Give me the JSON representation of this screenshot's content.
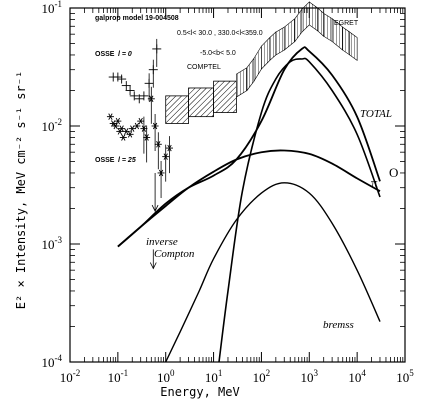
{
  "chart_data": {
    "type": "line",
    "title": "",
    "xlabel": "Energy, MeV",
    "ylabel": "E² × Intensity, MeV cm⁻² s⁻¹ sr⁻¹",
    "xscale": "log",
    "yscale": "log",
    "xlim": [
      0.01,
      100000
    ],
    "ylim": [
      0.0001,
      0.1
    ],
    "x_ticks": [
      {
        "value": 0.01,
        "base": "10",
        "exp": "-2"
      },
      {
        "value": 0.1,
        "base": "10",
        "exp": "-1"
      },
      {
        "value": 1,
        "base": "10",
        "exp": "0"
      },
      {
        "value": 10,
        "base": "10",
        "exp": "1"
      },
      {
        "value": 100,
        "base": "10",
        "exp": "2"
      },
      {
        "value": 1000,
        "base": "10",
        "exp": "3"
      },
      {
        "value": 10000,
        "base": "10",
        "exp": "4"
      },
      {
        "value": 100000,
        "base": "10",
        "exp": "5"
      }
    ],
    "y_ticks": [
      {
        "value": 0.0001,
        "base": "10",
        "exp": "-4"
      },
      {
        "value": 0.001,
        "base": "10",
        "exp": "-3"
      },
      {
        "value": 0.01,
        "base": "10",
        "exp": "-2"
      },
      {
        "value": 0.1,
        "base": "10",
        "exp": "-1"
      }
    ],
    "annotations": {
      "model": "galprop model 19-004508",
      "region": "0.5<l< 30.0 , 330.0<l<359.0",
      "latitude": "-5.0<b< 5.0",
      "comptel": "COMPTEL",
      "egret": "EGRET",
      "osse1_prefix": "OSSE",
      "osse1_eq": "l = 0",
      "osse2_prefix": "OSSE",
      "osse2_eq": "l = 25",
      "total": "TOTAL",
      "inverse": "inverse",
      "compton": "Compton",
      "bremss": "bremss",
      "pi0_pi": "π",
      "pi0_o": "O"
    },
    "series": [
      {
        "id": "total",
        "x": [
          0.1,
          0.3,
          1,
          3,
          10,
          30,
          100,
          300,
          700,
          1000,
          3000,
          10000,
          30000
        ],
        "y": [
          0.00095,
          0.0014,
          0.0022,
          0.003,
          0.0038,
          0.0052,
          0.011,
          0.03,
          0.045,
          0.043,
          0.027,
          0.012,
          0.0034
        ]
      },
      {
        "id": "pi0",
        "x": [
          13,
          20,
          40,
          100,
          200,
          400,
          700,
          1000,
          3000,
          10000,
          30000
        ],
        "y": [
          0.0001,
          0.0004,
          0.0028,
          0.013,
          0.025,
          0.035,
          0.037,
          0.035,
          0.02,
          0.0085,
          0.0025
        ]
      },
      {
        "id": "inverse_compton",
        "x": [
          0.1,
          0.3,
          1,
          3,
          10,
          30,
          100,
          300,
          1000,
          3000,
          10000,
          30000
        ],
        "y": [
          0.00095,
          0.0014,
          0.0021,
          0.003,
          0.0041,
          0.0052,
          0.006,
          0.0062,
          0.0058,
          0.0048,
          0.0036,
          0.0028
        ]
      },
      {
        "id": "bremss",
        "x": [
          1,
          2,
          5,
          10,
          30,
          100,
          300,
          1000,
          3000,
          10000,
          30000
        ],
        "y": [
          0.0001,
          0.00018,
          0.0004,
          0.00075,
          0.0016,
          0.0027,
          0.0033,
          0.0027,
          0.0015,
          0.0006,
          0.00022
        ]
      },
      {
        "id": "osse_l0",
        "marker": "+",
        "x": [
          0.08,
          0.1,
          0.12,
          0.15,
          0.18,
          0.22,
          0.28,
          0.35,
          0.45,
          0.55,
          0.65
        ],
        "y": [
          0.026,
          0.026,
          0.025,
          0.022,
          0.02,
          0.018,
          0.017,
          0.018,
          0.023,
          0.03,
          0.045
        ]
      },
      {
        "id": "osse_l25",
        "marker": "*",
        "x": [
          0.07,
          0.08,
          0.09,
          0.1,
          0.11,
          0.12,
          0.13,
          0.15,
          0.18,
          0.2,
          0.25,
          0.3,
          0.35,
          0.4,
          0.5,
          0.6,
          0.7,
          0.8,
          1.0,
          1.2
        ],
        "y": [
          0.012,
          0.0105,
          0.01,
          0.011,
          0.009,
          0.0095,
          0.008,
          0.009,
          0.0085,
          0.0095,
          0.01,
          0.011,
          0.0095,
          0.008,
          0.017,
          0.01,
          0.007,
          0.004,
          0.0055,
          0.0065
        ]
      }
    ],
    "comptel_boxes": [
      {
        "x": [
          1,
          3
        ],
        "y": [
          0.0105,
          0.018
        ]
      },
      {
        "x": [
          3,
          10
        ],
        "y": [
          0.012,
          0.021
        ]
      },
      {
        "x": [
          10,
          30
        ],
        "y": [
          0.013,
          0.024
        ]
      }
    ],
    "egret_data": {
      "x": [
        30,
        50,
        70,
        100,
        150,
        200,
        300,
        500,
        700,
        1000,
        1500,
        2000,
        3000,
        5000,
        7000,
        10000
      ],
      "y": [
        0.022,
        0.025,
        0.03,
        0.038,
        0.045,
        0.05,
        0.055,
        0.065,
        0.078,
        0.09,
        0.08,
        0.072,
        0.065,
        0.055,
        0.05,
        0.045
      ]
    }
  }
}
